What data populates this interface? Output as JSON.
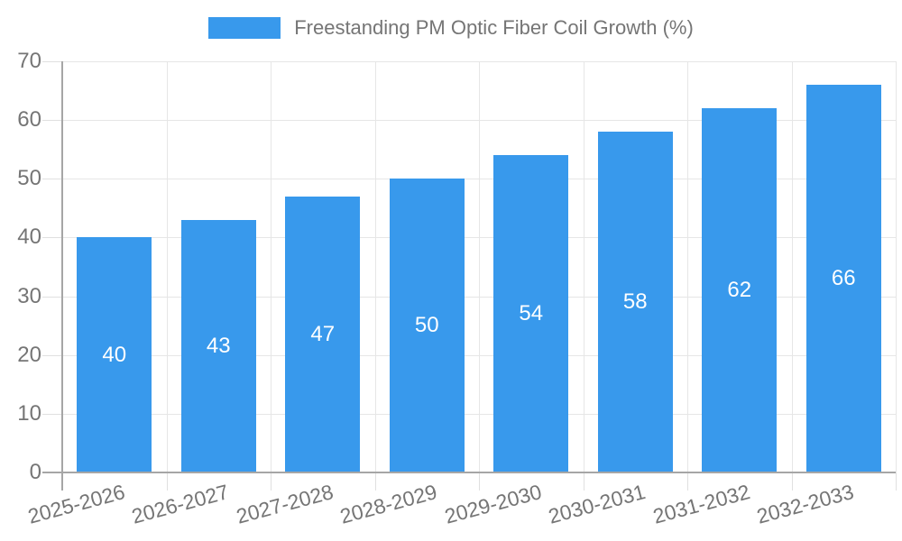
{
  "chart_data": {
    "type": "bar",
    "title": "Freestanding PM Optic Fiber Coil Growth (%)",
    "categories": [
      "2025-2026",
      "2026-2027",
      "2027-2028",
      "2028-2029",
      "2029-2030",
      "2030-2031",
      "2031-2032",
      "2032-2033"
    ],
    "values": [
      40,
      43,
      47,
      50,
      54,
      58,
      62,
      66
    ],
    "xlabel": "",
    "ylabel": "",
    "ylim": [
      0,
      70
    ],
    "yticks": [
      0,
      10,
      20,
      30,
      40,
      50,
      60,
      70
    ],
    "grid": true,
    "legend_position": "top-center",
    "bar_color": "#3899ec",
    "bar_value_label_color": "#ffffff",
    "axis_text_color": "#757575",
    "gridline_color": "#e6e6e6",
    "axis_line_color": "#a6a6a6",
    "background_color": "#ffffff"
  }
}
